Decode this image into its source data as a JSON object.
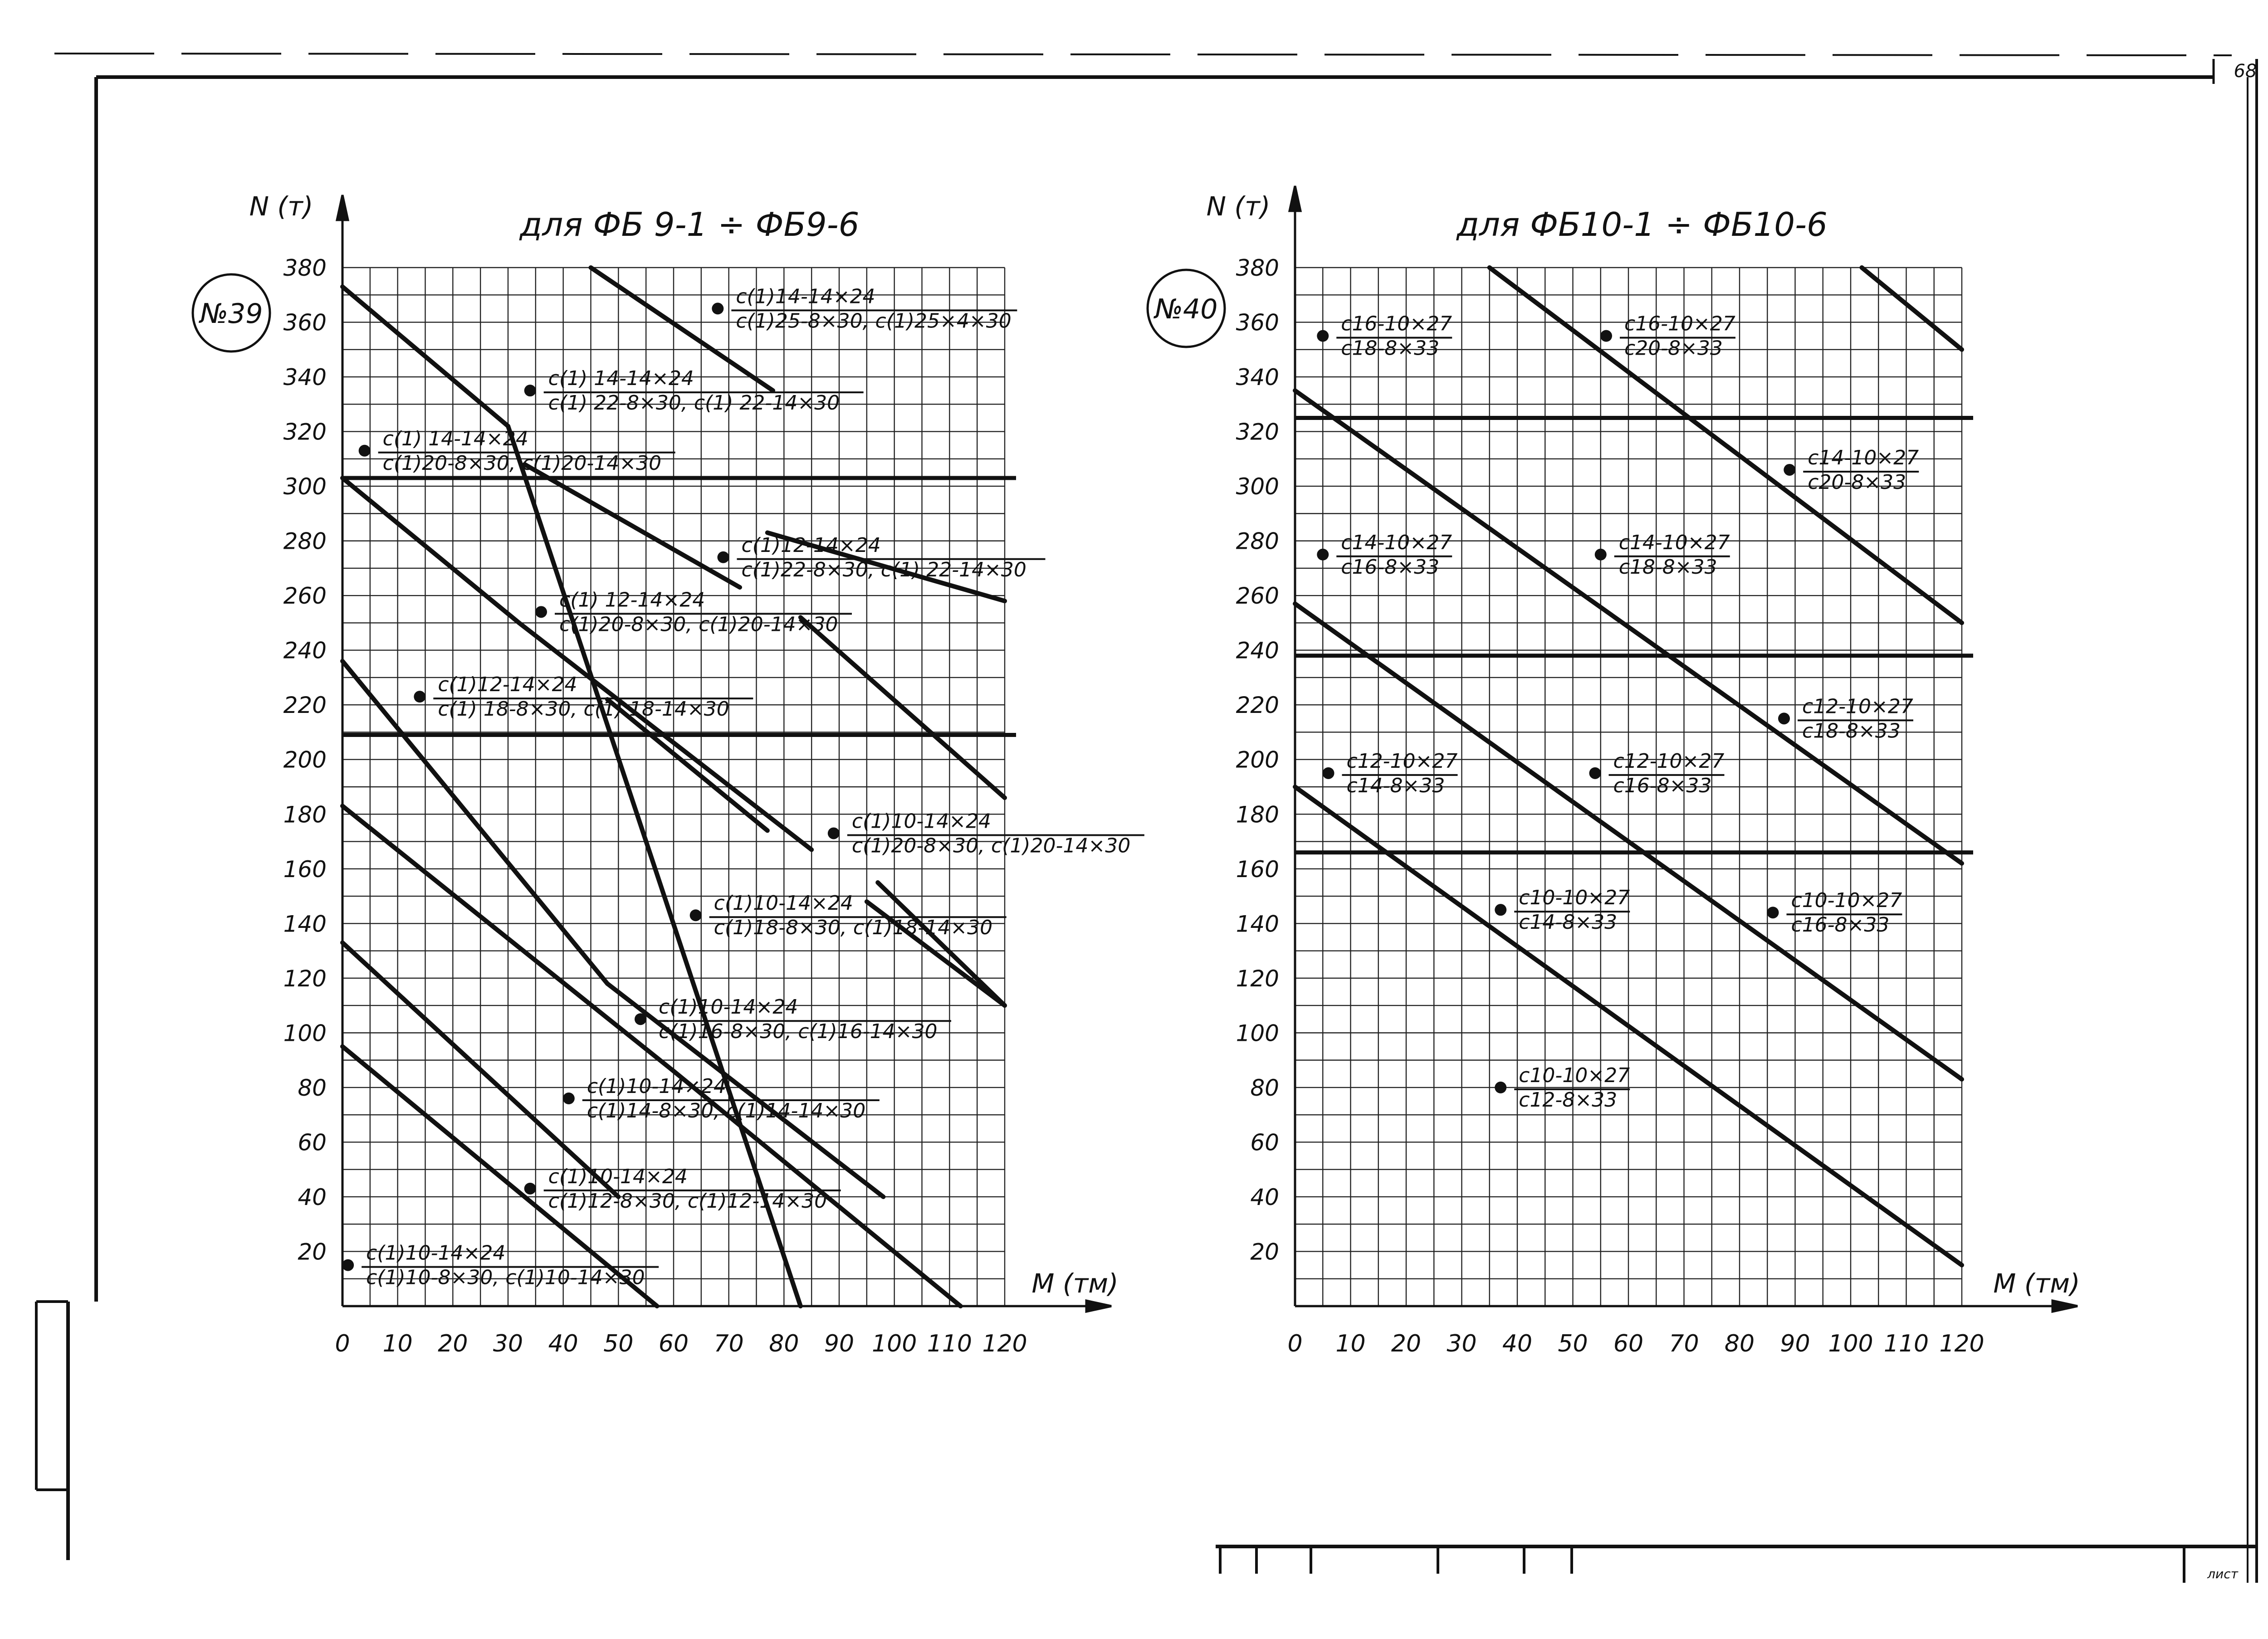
{
  "page_number": "68",
  "footer_label": "лист",
  "chart_data": [
    {
      "type": "line",
      "badge": "№39",
      "title": "для ФБ 9-1 ÷ ФБ9-6",
      "xlabel": "M (тм)",
      "ylabel": "N (т)",
      "xlim": [
        0,
        120
      ],
      "ylim": [
        0,
        380
      ],
      "grid": true,
      "x_ticks": [
        "0",
        "10",
        "20",
        "30",
        "40",
        "50",
        "60",
        "70",
        "80",
        "90",
        "100",
        "110",
        "120"
      ],
      "y_ticks": [
        "20",
        "40",
        "60",
        "80",
        "100",
        "120",
        "140",
        "160",
        "180",
        "200",
        "220",
        "240",
        "260",
        "280",
        "300",
        "320",
        "340",
        "360",
        "380"
      ],
      "horizontal_lines": [
        303,
        209
      ],
      "series": [
        {
          "x": [
            0,
            57
          ],
          "y": [
            95,
            0
          ]
        },
        {
          "x": [
            0,
            50
          ],
          "y": [
            133,
            40
          ]
        },
        {
          "x": [
            0,
            60
          ],
          "y": [
            183,
            86
          ]
        },
        {
          "x": [
            0,
            48
          ],
          "y": [
            236,
            118
          ]
        },
        {
          "x": [
            0,
            32
          ],
          "y": [
            303,
            250
          ]
        },
        {
          "x": [
            0,
            30
          ],
          "y": [
            373,
            322
          ]
        },
        {
          "x": [
            30,
            83
          ],
          "y": [
            322,
            0
          ]
        },
        {
          "x": [
            32,
            85
          ],
          "y": [
            250,
            167
          ]
        },
        {
          "x": [
            48,
            98
          ],
          "y": [
            118,
            40
          ]
        },
        {
          "x": [
            60,
            112
          ],
          "y": [
            86,
            0
          ]
        },
        {
          "x": [
            48,
            77
          ],
          "y": [
            222,
            174
          ]
        },
        {
          "x": [
            33,
            72
          ],
          "y": [
            308,
            263
          ]
        },
        {
          "x": [
            45,
            78
          ],
          "y": [
            380,
            335
          ]
        },
        {
          "x": [
            83,
            120
          ],
          "y": [
            252,
            186
          ]
        },
        {
          "x": [
            77,
            120
          ],
          "y": [
            283,
            258
          ]
        },
        {
          "x": [
            97,
            120
          ],
          "y": [
            155,
            110
          ]
        },
        {
          "x": [
            95,
            120
          ],
          "y": [
            148,
            110
          ]
        }
      ],
      "annotations": [
        {
          "x": 68,
          "y": 365,
          "top": "с(1)14-14×24",
          "bottom": "с(1)25-8×30, с(1)25×4×30"
        },
        {
          "x": 34,
          "y": 335,
          "top": "с(1) 14-14×24",
          "bottom": "с(1) 22-8×30, с(1) 22-14×30"
        },
        {
          "x": 4,
          "y": 313,
          "top": "с(1) 14-14×24",
          "bottom": "с(1)20-8×30, с(1)20-14×30"
        },
        {
          "x": 69,
          "y": 274,
          "top": "с(1)12-14×24",
          "bottom": "с(1)22-8×30, с(1) 22-14×30"
        },
        {
          "x": 36,
          "y": 254,
          "top": "с(1) 12-14×24",
          "bottom": "с(1)20-8×30, с(1)20-14×30"
        },
        {
          "x": 14,
          "y": 223,
          "top": "с(1)12-14×24",
          "bottom": "с(1) 18-8×30, с(1) 18-14×30"
        },
        {
          "x": 89,
          "y": 173,
          "top": "с(1)10-14×24",
          "bottom": "с(1)20-8×30, с(1)20-14×30"
        },
        {
          "x": 64,
          "y": 143,
          "top": "с(1)10-14×24",
          "bottom": "с(1)18-8×30, с(1)18-14×30"
        },
        {
          "x": 54,
          "y": 105,
          "top": "с(1)10-14×24",
          "bottom": "с(1)16-8×30, с(1)16-14×30"
        },
        {
          "x": 41,
          "y": 76,
          "top": "с(1)10-14×24",
          "bottom": "с(1)14-8×30, с(1)14-14×30"
        },
        {
          "x": 34,
          "y": 43,
          "top": "с(1)10-14×24",
          "bottom": "с(1)12-8×30, с(1)12-14×30"
        },
        {
          "x": 1,
          "y": 15,
          "top": "с(1)10-14×24",
          "bottom": "с(1)10-8×30, с(1)10-14×30"
        }
      ]
    },
    {
      "type": "line",
      "badge": "№40",
      "title": "для ФБ10-1 ÷ ФБ10-6",
      "xlabel": "M (тм)",
      "ylabel": "N (т)",
      "xlim": [
        0,
        120
      ],
      "ylim": [
        0,
        380
      ],
      "grid": true,
      "x_ticks": [
        "0",
        "10",
        "20",
        "30",
        "40",
        "50",
        "60",
        "70",
        "80",
        "90",
        "100",
        "110",
        "120"
      ],
      "y_ticks": [
        "20",
        "40",
        "60",
        "80",
        "100",
        "120",
        "140",
        "160",
        "180",
        "200",
        "220",
        "240",
        "260",
        "280",
        "300",
        "320",
        "340",
        "360",
        "380"
      ],
      "horizontal_lines": [
        325,
        238,
        166
      ],
      "series": [
        {
          "x": [
            0,
            120
          ],
          "y": [
            190,
            15
          ]
        },
        {
          "x": [
            0,
            120
          ],
          "y": [
            257,
            83
          ]
        },
        {
          "x": [
            0,
            120
          ],
          "y": [
            335,
            162
          ]
        },
        {
          "x": [
            35,
            120
          ],
          "y": [
            380,
            250
          ]
        },
        {
          "x": [
            102,
            120
          ],
          "y": [
            380,
            350
          ]
        }
      ],
      "annotations": [
        {
          "x": 5,
          "y": 355,
          "top": "с16-10×27",
          "bottom": "с18-8×33"
        },
        {
          "x": 56,
          "y": 355,
          "top": "с16-10×27",
          "bottom": "с20-8×33"
        },
        {
          "x": 89,
          "y": 306,
          "top": "с14-10×27",
          "bottom": "с20-8×33"
        },
        {
          "x": 5,
          "y": 275,
          "top": "с14-10×27",
          "bottom": "с16-8×33"
        },
        {
          "x": 55,
          "y": 275,
          "top": "с14-10×27",
          "bottom": "с18-8×33"
        },
        {
          "x": 88,
          "y": 215,
          "top": "с12-10×27",
          "bottom": "с18-8×33"
        },
        {
          "x": 6,
          "y": 195,
          "top": "с12-10×27",
          "bottom": "с14-8×33"
        },
        {
          "x": 54,
          "y": 195,
          "top": "с12-10×27",
          "bottom": "с16-8×33"
        },
        {
          "x": 37,
          "y": 145,
          "top": "с10-10×27",
          "bottom": "с14-8×33"
        },
        {
          "x": 86,
          "y": 144,
          "top": "с10-10×27",
          "bottom": "с16-8×33"
        },
        {
          "x": 37,
          "y": 80,
          "top": "с10-10×27",
          "bottom": "с12-8×33"
        }
      ]
    }
  ]
}
